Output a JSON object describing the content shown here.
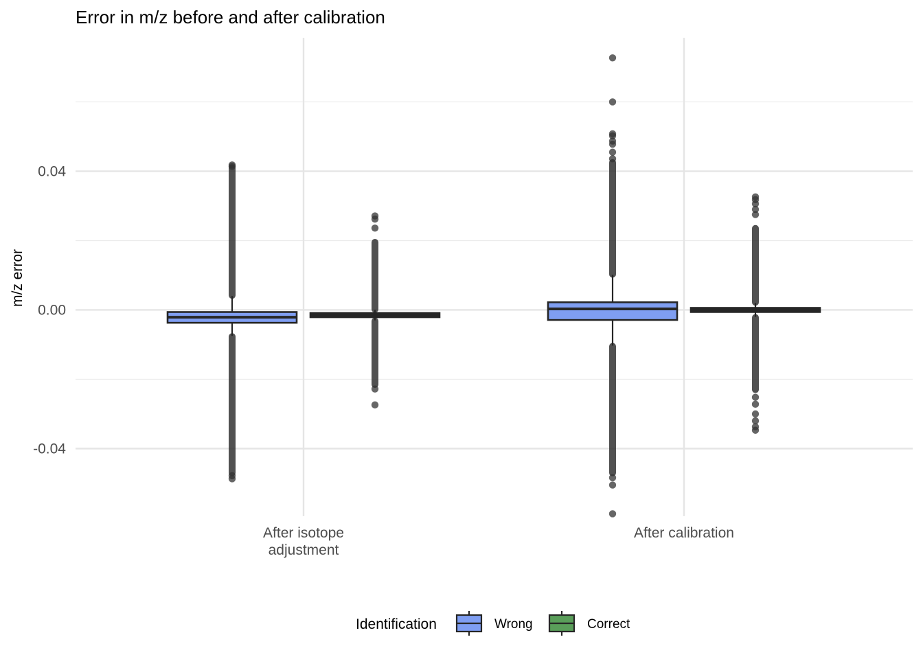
{
  "chart_data": {
    "type": "boxplot",
    "title": "Error in m/z before and after calibration",
    "xlabel": "",
    "ylabel": "m/z error",
    "ylim": [
      -0.0595,
      0.0785
    ],
    "yticks": [
      -0.04,
      0.0,
      0.04
    ],
    "ytick_labels": [
      "-0.04",
      "0.00",
      "0.04"
    ],
    "grid": true,
    "categories": [
      {
        "lines": [
          "After isotope",
          "adjustment"
        ]
      },
      {
        "lines": [
          "After calibration"
        ]
      }
    ],
    "legend": {
      "title": "Identification",
      "position": "bottom",
      "items": [
        {
          "label": "Wrong",
          "color": "#7f9ef2"
        },
        {
          "label": "Correct",
          "color": "#5a9e5a"
        }
      ]
    },
    "series": [
      {
        "name": "Wrong",
        "color": "#7f9ef2",
        "boxes": [
          {
            "category_index": 0,
            "q1": -0.0037,
            "median": -0.0021,
            "q3": -0.0006,
            "whisker_low": -0.0075,
            "whisker_high": 0.004,
            "outlier_bands": [
              [
                0.0042,
                0.041
              ],
              [
                -0.047,
                -0.0077
              ]
            ],
            "outliers": [
              -0.0487,
              -0.0478,
              0.0418,
              0.0414
            ]
          },
          {
            "category_index": 1,
            "q1": -0.0029,
            "median": 0.0003,
            "q3": 0.0022,
            "whisker_low": -0.0103,
            "whisker_high": 0.0101,
            "outlier_bands": [
              [
                0.0103,
                0.0425
              ],
              [
                -0.047,
                -0.0105
              ]
            ],
            "outliers": [
              0.0727,
              0.06,
              0.0508,
              0.0502,
              0.0487,
              0.0478,
              0.0455,
              0.0436,
              -0.0484,
              -0.0505,
              -0.0588
            ]
          }
        ]
      },
      {
        "name": "Correct",
        "color": "#5a9e5a",
        "boxes": [
          {
            "category_index": 0,
            "q1": -0.0019,
            "median": -0.0015,
            "q3": -0.0011,
            "whisker_low": -0.003,
            "whisker_high": 0.0,
            "outlier_bands": [
              [
                0.0002,
                0.0195
              ],
              [
                -0.0215,
                -0.0032
              ]
            ],
            "outliers": [
              0.0271,
              0.0262,
              0.0236,
              -0.0228,
              -0.0274
            ]
          },
          {
            "category_index": 1,
            "q1": -0.0003,
            "median": 0.0,
            "q3": 0.0003,
            "whisker_low": -0.002,
            "whisker_high": 0.002,
            "outlier_bands": [
              [
                0.0022,
                0.0235
              ],
              [
                -0.023,
                -0.0022
              ]
            ],
            "outliers": [
              0.0326,
              0.0318,
              0.0306,
              0.029,
              0.0275,
              -0.0252,
              -0.0272,
              -0.03,
              -0.032,
              -0.0347,
              -0.0337
            ]
          }
        ]
      }
    ]
  }
}
